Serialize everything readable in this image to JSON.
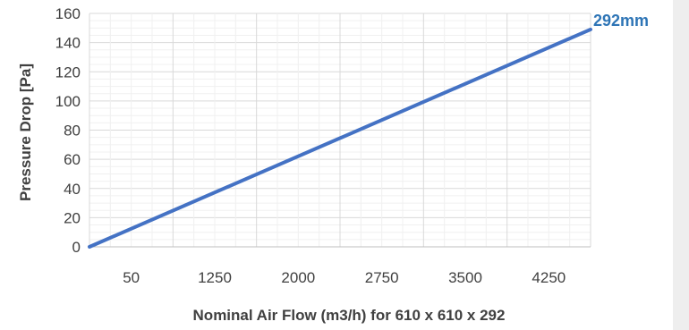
{
  "chart_data": {
    "type": "line",
    "x_ticks": [
      "50",
      "1250",
      "2000",
      "2750",
      "3500",
      "4250"
    ],
    "y_ticks": [
      "0",
      "20",
      "40",
      "60",
      "80",
      "100",
      "120",
      "140",
      "160"
    ],
    "xlim": [
      0,
      4250
    ],
    "ylim": [
      0,
      160
    ],
    "xlabel": "Nominal Air Flow (m3/h) for 610 x 610 x 292",
    "ylabel": "Pressure Drop [Pa]",
    "grid": true,
    "series": [
      {
        "name": "292mm",
        "color": "#4472c4",
        "label_color": "#2e75b6",
        "points": [
          [
            0,
            0
          ],
          [
            4250,
            149
          ]
        ]
      }
    ]
  }
}
